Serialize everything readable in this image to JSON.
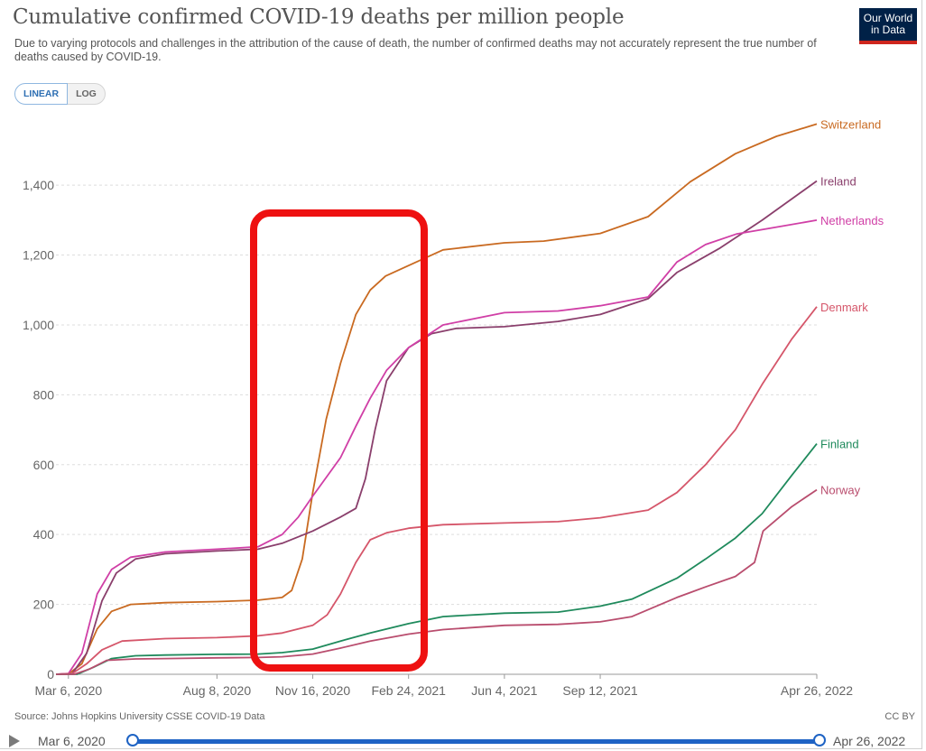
{
  "title": "Cumulative confirmed COVID-19 deaths per million people",
  "subtitle": "Due to varying protocols and challenges in the attribution of the cause of death, the number of confirmed deaths may not accurately represent the true number of deaths caused by COVID-19.",
  "logo": {
    "line1": "Our World",
    "line2": "in Data"
  },
  "scale_toggle": {
    "linear": "LINEAR",
    "log": "LOG"
  },
  "source": "Source: Johns Hopkins University CSSE COVID-19 Data",
  "license": "CC BY",
  "timeline": {
    "start": "Mar 6, 2020",
    "end": "Apr 26, 2022"
  },
  "colors": {
    "Switzerland": "#c96a21",
    "Ireland": "#8a3f6c",
    "Netherlands": "#d03fa6",
    "Denmark": "#d5566a",
    "Finland": "#1f8a5c",
    "Norway": "#b94d6e",
    "highlight": "#ee1111"
  },
  "chart_data": {
    "type": "line",
    "x_ticks": [
      "Mar 6, 2020",
      "Aug 8, 2020",
      "Nov 16, 2020",
      "Feb 24, 2021",
      "Jun 4, 2021",
      "Sep 12, 2021",
      "Apr 26, 2022"
    ],
    "y_ticks": [
      "0",
      "200",
      "400",
      "600",
      "800",
      "1,000",
      "1,200",
      "1,400"
    ],
    "ylim": [
      0,
      1620
    ],
    "xlim": [
      "2020-02-22",
      "2022-04-26"
    ],
    "grid": "horizontal dashed",
    "series": [
      {
        "name": "Switzerland",
        "points": [
          [
            "2020-02-22",
            0
          ],
          [
            "2020-03-06",
            1
          ],
          [
            "2020-03-20",
            30
          ],
          [
            "2020-04-05",
            130
          ],
          [
            "2020-04-20",
            180
          ],
          [
            "2020-05-10",
            200
          ],
          [
            "2020-06-15",
            205
          ],
          [
            "2020-08-08",
            208
          ],
          [
            "2020-09-20",
            212
          ],
          [
            "2020-10-15",
            220
          ],
          [
            "2020-10-25",
            240
          ],
          [
            "2020-11-05",
            330
          ],
          [
            "2020-11-16",
            520
          ],
          [
            "2020-11-30",
            730
          ],
          [
            "2020-12-15",
            890
          ],
          [
            "2020-12-31",
            1030
          ],
          [
            "2021-01-15",
            1100
          ],
          [
            "2021-01-31",
            1140
          ],
          [
            "2021-02-24",
            1170
          ],
          [
            "2021-04-01",
            1215
          ],
          [
            "2021-06-04",
            1235
          ],
          [
            "2021-07-15",
            1240
          ],
          [
            "2021-09-12",
            1262
          ],
          [
            "2021-11-01",
            1310
          ],
          [
            "2021-12-15",
            1410
          ],
          [
            "2022-01-31",
            1490
          ],
          [
            "2022-03-15",
            1540
          ],
          [
            "2022-04-26",
            1575
          ]
        ]
      },
      {
        "name": "Ireland",
        "points": [
          [
            "2020-02-22",
            0
          ],
          [
            "2020-03-10",
            2
          ],
          [
            "2020-03-25",
            60
          ],
          [
            "2020-04-10",
            210
          ],
          [
            "2020-04-25",
            290
          ],
          [
            "2020-05-15",
            330
          ],
          [
            "2020-06-15",
            345
          ],
          [
            "2020-08-08",
            353
          ],
          [
            "2020-09-20",
            358
          ],
          [
            "2020-10-15",
            375
          ],
          [
            "2020-11-16",
            410
          ],
          [
            "2020-12-15",
            450
          ],
          [
            "2020-12-31",
            475
          ],
          [
            "2021-01-10",
            560
          ],
          [
            "2021-01-20",
            700
          ],
          [
            "2021-02-01",
            840
          ],
          [
            "2021-02-24",
            935
          ],
          [
            "2021-03-20",
            975
          ],
          [
            "2021-04-15",
            990
          ],
          [
            "2021-06-04",
            995
          ],
          [
            "2021-07-30",
            1010
          ],
          [
            "2021-09-12",
            1030
          ],
          [
            "2021-11-01",
            1075
          ],
          [
            "2021-12-01",
            1150
          ],
          [
            "2022-01-15",
            1220
          ],
          [
            "2022-02-28",
            1300
          ],
          [
            "2022-04-26",
            1412
          ]
        ]
      },
      {
        "name": "Netherlands",
        "points": [
          [
            "2020-02-22",
            0
          ],
          [
            "2020-03-06",
            2
          ],
          [
            "2020-03-20",
            60
          ],
          [
            "2020-04-05",
            230
          ],
          [
            "2020-04-20",
            300
          ],
          [
            "2020-05-10",
            335
          ],
          [
            "2020-06-15",
            350
          ],
          [
            "2020-08-08",
            358
          ],
          [
            "2020-09-20",
            365
          ],
          [
            "2020-10-15",
            400
          ],
          [
            "2020-11-01",
            450
          ],
          [
            "2020-11-16",
            510
          ],
          [
            "2020-12-15",
            620
          ],
          [
            "2020-12-31",
            710
          ],
          [
            "2021-01-15",
            790
          ],
          [
            "2021-02-01",
            870
          ],
          [
            "2021-02-24",
            935
          ],
          [
            "2021-04-01",
            1000
          ],
          [
            "2021-06-04",
            1035
          ],
          [
            "2021-07-30",
            1040
          ],
          [
            "2021-09-12",
            1055
          ],
          [
            "2021-11-01",
            1080
          ],
          [
            "2021-12-01",
            1180
          ],
          [
            "2021-12-31",
            1230
          ],
          [
            "2022-02-01",
            1260
          ],
          [
            "2022-04-26",
            1300
          ]
        ]
      },
      {
        "name": "Denmark",
        "points": [
          [
            "2020-02-22",
            0
          ],
          [
            "2020-03-10",
            2
          ],
          [
            "2020-03-25",
            30
          ],
          [
            "2020-04-10",
            70
          ],
          [
            "2020-05-01",
            95
          ],
          [
            "2020-06-15",
            102
          ],
          [
            "2020-08-08",
            105
          ],
          [
            "2020-09-20",
            110
          ],
          [
            "2020-10-15",
            118
          ],
          [
            "2020-11-16",
            140
          ],
          [
            "2020-12-01",
            170
          ],
          [
            "2020-12-15",
            230
          ],
          [
            "2020-12-31",
            320
          ],
          [
            "2021-01-15",
            385
          ],
          [
            "2021-02-01",
            405
          ],
          [
            "2021-02-24",
            418
          ],
          [
            "2021-04-01",
            428
          ],
          [
            "2021-06-04",
            433
          ],
          [
            "2021-07-30",
            437
          ],
          [
            "2021-09-12",
            448
          ],
          [
            "2021-11-01",
            470
          ],
          [
            "2021-12-01",
            520
          ],
          [
            "2021-12-31",
            600
          ],
          [
            "2022-01-31",
            700
          ],
          [
            "2022-02-28",
            830
          ],
          [
            "2022-03-31",
            960
          ],
          [
            "2022-04-26",
            1052
          ]
        ]
      },
      {
        "name": "Finland",
        "points": [
          [
            "2020-02-22",
            0
          ],
          [
            "2020-03-15",
            0
          ],
          [
            "2020-04-01",
            20
          ],
          [
            "2020-04-20",
            45
          ],
          [
            "2020-05-15",
            53
          ],
          [
            "2020-06-15",
            55
          ],
          [
            "2020-08-08",
            57
          ],
          [
            "2020-09-20",
            58
          ],
          [
            "2020-10-15",
            62
          ],
          [
            "2020-11-16",
            72
          ],
          [
            "2020-12-15",
            95
          ],
          [
            "2021-01-15",
            118
          ],
          [
            "2021-02-24",
            145
          ],
          [
            "2021-04-01",
            165
          ],
          [
            "2021-06-04",
            175
          ],
          [
            "2021-07-30",
            178
          ],
          [
            "2021-09-12",
            195
          ],
          [
            "2021-10-15",
            215
          ],
          [
            "2021-12-01",
            275
          ],
          [
            "2021-12-31",
            330
          ],
          [
            "2022-01-31",
            390
          ],
          [
            "2022-02-28",
            460
          ],
          [
            "2022-03-31",
            570
          ],
          [
            "2022-04-26",
            660
          ]
        ]
      },
      {
        "name": "Norway",
        "points": [
          [
            "2020-02-22",
            0
          ],
          [
            "2020-03-12",
            0
          ],
          [
            "2020-03-28",
            15
          ],
          [
            "2020-04-15",
            40
          ],
          [
            "2020-05-15",
            44
          ],
          [
            "2020-06-15",
            45
          ],
          [
            "2020-08-08",
            47
          ],
          [
            "2020-09-20",
            48
          ],
          [
            "2020-10-15",
            50
          ],
          [
            "2020-11-16",
            58
          ],
          [
            "2020-12-15",
            75
          ],
          [
            "2021-01-15",
            95
          ],
          [
            "2021-02-24",
            115
          ],
          [
            "2021-04-01",
            128
          ],
          [
            "2021-06-04",
            140
          ],
          [
            "2021-07-30",
            143
          ],
          [
            "2021-09-12",
            150
          ],
          [
            "2021-10-15",
            165
          ],
          [
            "2021-12-01",
            220
          ],
          [
            "2021-12-31",
            250
          ],
          [
            "2022-01-31",
            280
          ],
          [
            "2022-02-20",
            320
          ],
          [
            "2022-03-01",
            410
          ],
          [
            "2022-03-31",
            480
          ],
          [
            "2022-04-26",
            528
          ]
        ]
      }
    ]
  }
}
